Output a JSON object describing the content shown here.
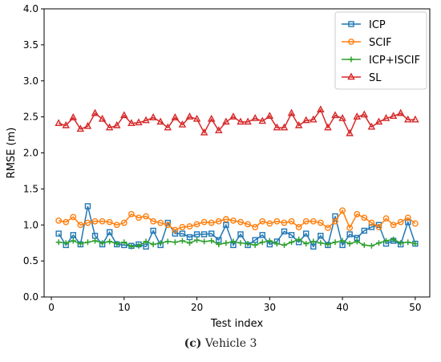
{
  "caption": {
    "label": "(c)",
    "text": "Vehicle 3"
  },
  "chart_data": {
    "type": "line",
    "title": "",
    "xlabel": "Test index",
    "ylabel": "RMSE (m)",
    "xlim": [
      -1,
      52
    ],
    "ylim": [
      0.0,
      4.0
    ],
    "xticks": [
      "0",
      "10",
      "20",
      "30",
      "40",
      "50"
    ],
    "yticks": [
      "0.0",
      "0.5",
      "1.0",
      "1.5",
      "2.0",
      "2.5",
      "3.0",
      "3.5",
      "4.0"
    ],
    "grid": false,
    "legend_position": "top-right",
    "x": [
      1,
      2,
      3,
      4,
      5,
      6,
      7,
      8,
      9,
      10,
      11,
      12,
      13,
      14,
      15,
      16,
      17,
      18,
      19,
      20,
      21,
      22,
      23,
      24,
      25,
      26,
      27,
      28,
      29,
      30,
      31,
      32,
      33,
      34,
      35,
      36,
      37,
      38,
      39,
      40,
      41,
      42,
      43,
      44,
      45,
      46,
      47,
      48,
      49,
      50
    ],
    "series": [
      {
        "name": "ICP",
        "color": "#1f77b4",
        "marker": "square",
        "values": [
          0.88,
          0.72,
          0.86,
          0.73,
          1.26,
          0.85,
          0.73,
          0.9,
          0.73,
          0.72,
          0.71,
          0.73,
          0.7,
          0.92,
          0.72,
          1.03,
          0.88,
          0.88,
          0.83,
          0.87,
          0.87,
          0.88,
          0.79,
          1.0,
          0.72,
          0.87,
          0.72,
          0.79,
          0.86,
          0.73,
          0.77,
          0.91,
          0.86,
          0.76,
          0.88,
          0.7,
          0.85,
          0.72,
          1.12,
          0.72,
          0.87,
          0.82,
          0.92,
          0.97,
          1.0,
          0.74,
          0.78,
          0.73,
          1.04,
          0.74
        ]
      },
      {
        "name": "SCIF",
        "color": "#ff7f0e",
        "marker": "circle",
        "values": [
          1.06,
          1.04,
          1.11,
          1.0,
          1.03,
          1.05,
          1.05,
          1.04,
          1.0,
          1.03,
          1.15,
          1.1,
          1.12,
          1.05,
          1.03,
          1.0,
          0.93,
          0.97,
          0.98,
          1.01,
          1.04,
          1.03,
          1.05,
          1.08,
          1.06,
          1.04,
          1.01,
          0.97,
          1.05,
          1.02,
          1.05,
          1.03,
          1.05,
          0.97,
          1.05,
          1.05,
          1.03,
          0.96,
          1.05,
          1.2,
          0.96,
          1.15,
          1.1,
          1.03,
          0.97,
          1.09,
          1.0,
          1.04,
          1.1,
          1.02
        ]
      },
      {
        "name": "ICP+ISCIF",
        "color": "#2ca02c",
        "marker": "plus",
        "values": [
          0.76,
          0.75,
          0.78,
          0.74,
          0.76,
          0.78,
          0.75,
          0.77,
          0.74,
          0.76,
          0.7,
          0.71,
          0.77,
          0.73,
          0.75,
          0.77,
          0.76,
          0.78,
          0.75,
          0.79,
          0.77,
          0.78,
          0.73,
          0.75,
          0.77,
          0.75,
          0.74,
          0.72,
          0.76,
          0.78,
          0.74,
          0.72,
          0.76,
          0.8,
          0.74,
          0.77,
          0.75,
          0.73,
          0.76,
          0.78,
          0.74,
          0.77,
          0.72,
          0.71,
          0.75,
          0.78,
          0.8,
          0.75,
          0.76,
          0.74
        ]
      },
      {
        "name": "SL",
        "color": "#d62728",
        "marker": "triangle",
        "values": [
          2.41,
          2.38,
          2.49,
          2.33,
          2.37,
          2.55,
          2.47,
          2.35,
          2.38,
          2.52,
          2.41,
          2.42,
          2.45,
          2.49,
          2.43,
          2.35,
          2.49,
          2.39,
          2.5,
          2.47,
          2.28,
          2.47,
          2.31,
          2.43,
          2.5,
          2.43,
          2.43,
          2.48,
          2.44,
          2.51,
          2.35,
          2.35,
          2.55,
          2.38,
          2.45,
          2.46,
          2.6,
          2.35,
          2.52,
          2.48,
          2.27,
          2.5,
          2.53,
          2.36,
          2.43,
          2.48,
          2.51,
          2.55,
          2.46,
          2.46
        ]
      }
    ]
  }
}
